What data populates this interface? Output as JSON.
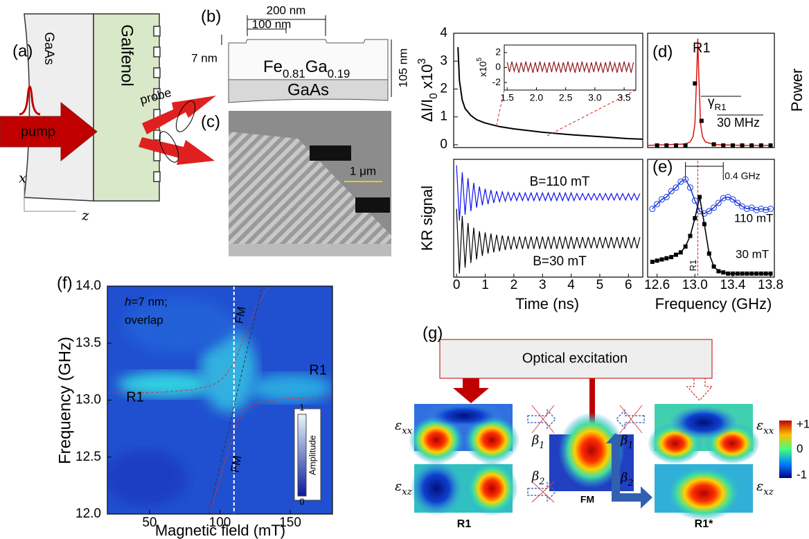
{
  "panel_labels": [
    "(a)",
    "(b)",
    "(c)",
    "(d)",
    "(e)",
    "(f)",
    "(g)"
  ],
  "panel_a": {
    "gaas": "GaAs",
    "galfenol": "Galfenol",
    "pump": "pump",
    "probe": "probe",
    "x": "x",
    "z": "z"
  },
  "panel_b": {
    "width_top": "200 nm",
    "width_gap": "100 nm",
    "step": "7 nm",
    "thickness": "105 nm",
    "film": [
      "Fe",
      "0.81",
      "Ga",
      "0.19"
    ],
    "substrate": "GaAs"
  },
  "panel_c": {
    "scale_bar": "1 μm"
  },
  "reflectivity": {
    "type": "line",
    "ylabel": [
      "ΔI/I",
      "0",
      " x10",
      "3"
    ],
    "xlim": [
      -0.1,
      6.5
    ],
    "ylim": [
      -0.1,
      4
    ],
    "yticks": [
      0,
      1,
      2,
      3,
      4
    ],
    "color": "#000000",
    "x": [
      0.05,
      0.1,
      0.2,
      0.3,
      0.5,
      0.7,
      1,
      1.5,
      2,
      3,
      4,
      5,
      6,
      6.5
    ],
    "values": [
      3.5,
      2.3,
      1.6,
      1.3,
      1.05,
      0.9,
      0.78,
      0.65,
      0.57,
      0.45,
      0.36,
      0.29,
      0.22,
      0.2
    ],
    "inset": {
      "type": "line",
      "ylabel": [
        "x10",
        "5"
      ],
      "xlim": [
        1.45,
        3.7
      ],
      "ylim": [
        -3,
        3
      ],
      "xticks": [
        1.5,
        {
          "value": 2,
          "label": "2.0"
        },
        2.5,
        {
          "value": 3,
          "label": "3.0"
        },
        3.5
      ],
      "yticks": [
        -2,
        0,
        2
      ],
      "color": "#8b1a1a",
      "x": [
        1.5,
        1.54,
        1.58,
        1.62,
        1.66,
        1.7,
        1.74,
        1.78,
        1.82,
        1.86,
        1.9,
        1.94,
        1.98,
        2.02,
        2.06,
        2.1,
        2.14,
        2.18,
        2.22,
        2.26,
        2.3,
        2.34,
        2.38,
        2.42,
        2.46,
        2.5,
        2.54,
        2.58,
        2.62,
        2.66,
        2.7,
        2.74,
        2.78,
        2.82,
        2.86,
        2.9,
        2.94,
        2.98,
        3.02,
        3.06,
        3.1,
        3.14,
        3.18,
        3.22,
        3.26,
        3.3,
        3.34,
        3.38,
        3.42,
        3.46,
        3.5,
        3.54,
        3.58,
        3.62,
        3.66
      ],
      "values": [
        0.7,
        -0.6,
        0.8,
        -0.5,
        0.6,
        -0.7,
        0.7,
        -0.6,
        0.8,
        -0.5,
        0.6,
        -0.7,
        0.7,
        -0.6,
        0.8,
        -0.5,
        0.6,
        -0.7,
        0.7,
        -0.6,
        0.8,
        -0.5,
        0.6,
        -0.7,
        0.7,
        -0.6,
        0.8,
        -0.5,
        0.6,
        -0.7,
        0.7,
        -0.6,
        0.8,
        -0.5,
        0.6,
        -0.7,
        0.7,
        -0.6,
        0.8,
        -0.5,
        0.6,
        -0.7,
        0.7,
        -0.6,
        0.8,
        -0.5,
        0.6,
        -0.7,
        0.7,
        -0.6,
        0.8,
        -0.5,
        0.6,
        -0.7,
        0.7
      ]
    }
  },
  "kr": {
    "type": "line",
    "ylabel": "KR signal",
    "xlabel": "Time (ns)",
    "xlim": [
      -0.1,
      6.5
    ],
    "ylim": [
      0,
      10
    ],
    "xticks": [
      0,
      1,
      2,
      3,
      4,
      5,
      6
    ],
    "x": [
      0,
      0.1,
      0.2,
      0.3,
      0.4,
      0.5,
      0.6,
      0.7,
      0.8,
      0.9,
      1,
      1.1,
      1.2,
      1.3,
      1.4,
      1.5,
      1.6,
      1.7,
      1.8,
      1.9,
      2,
      2.1,
      2.2,
      2.3,
      2.4,
      2.5,
      2.6,
      2.7,
      2.8,
      2.9,
      3,
      3.1,
      3.2,
      3.3,
      3.4,
      3.5,
      3.6,
      3.7,
      3.8,
      3.9,
      4,
      4.1,
      4.2,
      4.3,
      4.4,
      4.5,
      4.6,
      4.7,
      4.8,
      4.9,
      5,
      5.1,
      5.2,
      5.3,
      5.4,
      5.5,
      5.6,
      5.7,
      5.8,
      5.9,
      6,
      6.1,
      6.2,
      6.3,
      6.4
    ],
    "series": [
      {
        "name": "B=110 mT",
        "color": "#1010ee",
        "values": [
          9.5,
          4.8,
          8.9,
          5.3,
          8.4,
          5.6,
          8.0,
          5.9,
          7.7,
          6.1,
          7.5,
          6.2,
          7.4,
          6.3,
          7.3,
          6.4,
          7.25,
          6.45,
          7.2,
          6.5,
          7.15,
          6.5,
          7.15,
          6.5,
          7.15,
          6.5,
          7.15,
          6.5,
          7.15,
          6.5,
          7.15,
          6.5,
          7.15,
          6.5,
          7.15,
          6.5,
          7.15,
          6.5,
          7.15,
          6.5,
          7.15,
          6.5,
          7.1,
          6.55,
          7.1,
          6.55,
          7.1,
          6.55,
          7.1,
          6.55,
          7.1,
          6.55,
          7.1,
          6.55,
          7.1,
          6.55,
          7.1,
          6.55,
          7.1,
          6.55,
          7.1,
          6.55,
          7.1,
          6.55,
          7.1
        ]
      },
      {
        "name": "B=30 mT",
        "color": "#000000",
        "values": [
          5.8,
          0.3,
          5.2,
          0.8,
          4.6,
          1.2,
          4.2,
          1.5,
          3.9,
          1.8,
          3.8,
          2.0,
          3.7,
          2.1,
          3.6,
          2.2,
          3.55,
          2.3,
          3.5,
          2.35,
          3.45,
          2.4,
          3.45,
          2.4,
          3.45,
          2.4,
          3.45,
          2.4,
          3.45,
          2.4,
          3.45,
          2.4,
          3.45,
          2.4,
          3.45,
          2.4,
          3.45,
          2.4,
          3.45,
          2.4,
          3.45,
          2.4,
          3.4,
          2.45,
          3.4,
          2.45,
          3.4,
          2.45,
          3.4,
          2.45,
          3.4,
          2.45,
          3.4,
          2.45,
          3.4,
          2.45,
          3.4,
          2.45,
          3.4,
          2.45,
          3.4,
          2.45,
          3.4,
          2.45,
          3.4
        ]
      }
    ]
  },
  "spectrum_d": {
    "type": "scatter",
    "ylabel": "Power",
    "peak_label": "R1",
    "width_label": [
      "γ",
      "R1"
    ],
    "width_value": "30 MHz",
    "xlim": [
      12.5,
      13.84
    ],
    "ylim": [
      -0.02,
      1.05
    ],
    "color": "#e01010",
    "x": [
      12.6,
      12.7,
      12.8,
      12.9,
      13.0,
      13.07,
      13.2,
      13.3,
      13.4,
      13.5,
      13.6,
      13.7,
      13.8
    ],
    "values": [
      0,
      0,
      0,
      0,
      0.58,
      0.23,
      0.01,
      0,
      0,
      0,
      0,
      0,
      0
    ],
    "fit_x": [
      12.5,
      12.9,
      12.95,
      12.98,
      13.0,
      13.02,
      13.03,
      13.04,
      13.06,
      13.08,
      13.11,
      13.2,
      13.5,
      13.8
    ],
    "fit_values": [
      0,
      0.013,
      0.034,
      0.083,
      0.2,
      0.69,
      1,
      0.69,
      0.2,
      0.083,
      0.034,
      0.008,
      0.001,
      0
    ]
  },
  "spectrum_e": {
    "type": "scatter",
    "xlabel": "Frequency (GHz)",
    "xlim": [
      12.5,
      13.84
    ],
    "ylim": [
      0,
      10
    ],
    "xticks": [
      12.6,
      {
        "value": 13,
        "label": "13.0"
      },
      13.4,
      13.8
    ],
    "r1_label": "R1",
    "r1_freq": 13.03,
    "gap": [
      12.9,
      13.3
    ],
    "gap_label": "0.4 GHz",
    "x": [
      12.55,
      12.6,
      12.65,
      12.7,
      12.75,
      12.8,
      12.85,
      12.9,
      12.95,
      13.0,
      13.05,
      13.1,
      13.15,
      13.2,
      13.25,
      13.3,
      13.35,
      13.4,
      13.45,
      13.5,
      13.55,
      13.6,
      13.65,
      13.7,
      13.75,
      13.8
    ],
    "series": [
      {
        "name": "110 mT",
        "color": "#1a3ae0",
        "values": [
          5.8,
          6.2,
          6.6,
          6.8,
          7.3,
          7.6,
          8.1,
          8.3,
          7.6,
          6.5,
          5.6,
          5.4,
          5.6,
          5.9,
          6.3,
          6.7,
          6.8,
          6.6,
          6.3,
          6.0,
          5.8,
          5.9,
          5.7,
          5.8,
          5.7,
          5.8
        ]
      },
      {
        "name": "30 mT",
        "color": "#000000",
        "values": [
          1.3,
          1.4,
          1.5,
          1.6,
          1.7,
          1.9,
          2.1,
          2.6,
          3.5,
          5.0,
          6.8,
          4.5,
          2.0,
          0.9,
          0.5,
          0.4,
          0.3,
          0.3,
          0.3,
          0.3,
          0.3,
          0.3,
          0.3,
          0.3,
          0.3,
          0.3
        ]
      }
    ]
  },
  "map_f": {
    "type": "heatmap",
    "xlabel": "Magnetic field (mT)",
    "ylabel": "Frequency (GHz)",
    "note": [
      "h",
      "=7 nm;",
      "overlap"
    ],
    "xlim": [
      20,
      180
    ],
    "ylim": [
      12,
      14
    ],
    "xticks": [
      50,
      100,
      150
    ],
    "yticks": [
      {
        "value": 12,
        "label": "12.0"
      },
      12.5,
      {
        "value": 13,
        "label": "13.0"
      },
      13.5,
      {
        "value": 14,
        "label": "14.0"
      }
    ],
    "cut_field": 110,
    "mode_labels": {
      "fm_top": "FM",
      "fm_bottom": "FM",
      "r1_left": "R1",
      "r1_right": "R1"
    },
    "colorbar": {
      "ticks": [
        0,
        1
      ],
      "label": "Amplitude"
    },
    "branches": [
      {
        "x": [
          20,
          60,
          80,
          95,
          103,
          110,
          117,
          125,
          135
        ],
        "values": [
          13.06,
          13.07,
          13.09,
          13.13,
          13.2,
          13.32,
          13.55,
          13.8,
          14.0
        ]
      },
      {
        "x": [
          92,
          100,
          107,
          112,
          118,
          128,
          145,
          180
        ],
        "values": [
          12.0,
          12.3,
          12.6,
          12.8,
          12.92,
          12.98,
          13.01,
          13.03
        ]
      }
    ]
  },
  "panel_g": {
    "excitation": "Optical excitation",
    "eps_xx": [
      "ε",
      "xx"
    ],
    "eps_xz": [
      "ε",
      "xz"
    ],
    "beta_1": [
      "β",
      "1"
    ],
    "beta_2": [
      "β",
      "2"
    ],
    "mode_r1": "R1",
    "mode_fm": "FM",
    "mode_r1_star": "R1*",
    "colorbar": [
      {
        "value": 1,
        "label": "+1"
      },
      0,
      -1
    ]
  }
}
